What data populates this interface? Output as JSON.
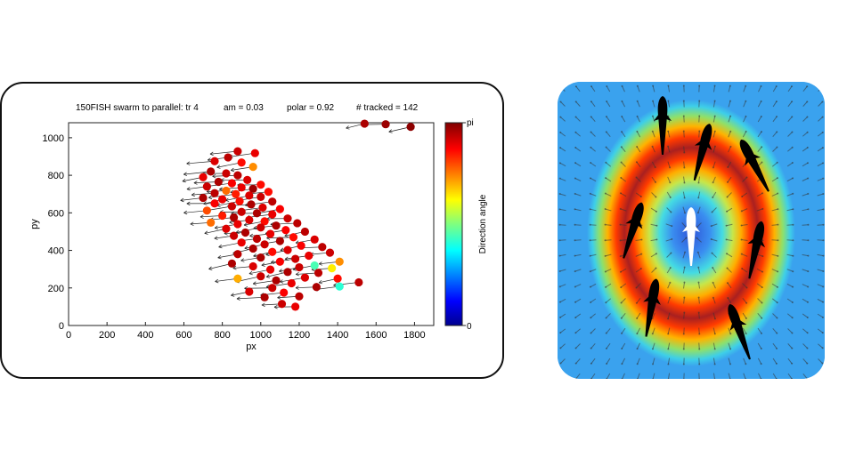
{
  "chart_data": [
    {
      "type": "scatter",
      "header": {
        "title": "150FISH swarm to parallel: tr 4",
        "am": "am = 0.03",
        "polar": "polar = 0.92",
        "tracked": "# tracked = 142"
      },
      "xlabel": "px",
      "ylabel": "py",
      "xlim": [
        0,
        1900
      ],
      "ylim": [
        0,
        1080
      ],
      "xticks": [
        "0",
        "200",
        "400",
        "600",
        "800",
        "1000",
        "1200",
        "1400",
        "1600",
        "1800"
      ],
      "yticks": [
        "0",
        "200",
        "400",
        "600",
        "800",
        "1000"
      ],
      "colorbar": {
        "label": "Direction angle",
        "min_label": "0",
        "max_label": "pi",
        "range": [
          0,
          3.1416
        ]
      },
      "points": [
        {
          "x": 1540,
          "y": 1075,
          "a": 3.0
        },
        {
          "x": 1650,
          "y": 1072,
          "a": 3.05
        },
        {
          "x": 1780,
          "y": 1058,
          "a": 3.1
        },
        {
          "x": 880,
          "y": 928,
          "a": 2.9
        },
        {
          "x": 970,
          "y": 918,
          "a": 2.8
        },
        {
          "x": 830,
          "y": 895,
          "a": 2.95
        },
        {
          "x": 760,
          "y": 875,
          "a": 2.85
        },
        {
          "x": 900,
          "y": 868,
          "a": 2.7
        },
        {
          "x": 960,
          "y": 845,
          "a": 2.3
        },
        {
          "x": 740,
          "y": 820,
          "a": 3.0
        },
        {
          "x": 820,
          "y": 810,
          "a": 2.9
        },
        {
          "x": 880,
          "y": 800,
          "a": 2.95
        },
        {
          "x": 700,
          "y": 790,
          "a": 2.8
        },
        {
          "x": 930,
          "y": 775,
          "a": 2.85
        },
        {
          "x": 780,
          "y": 765,
          "a": 3.0
        },
        {
          "x": 850,
          "y": 758,
          "a": 2.75
        },
        {
          "x": 1000,
          "y": 750,
          "a": 2.7
        },
        {
          "x": 720,
          "y": 740,
          "a": 2.9
        },
        {
          "x": 900,
          "y": 735,
          "a": 2.8
        },
        {
          "x": 960,
          "y": 728,
          "a": 3.05
        },
        {
          "x": 820,
          "y": 718,
          "a": 2.4
        },
        {
          "x": 1040,
          "y": 712,
          "a": 2.7
        },
        {
          "x": 760,
          "y": 705,
          "a": 2.95
        },
        {
          "x": 870,
          "y": 700,
          "a": 2.65
        },
        {
          "x": 940,
          "y": 692,
          "a": 2.85
        },
        {
          "x": 1000,
          "y": 685,
          "a": 2.9
        },
        {
          "x": 700,
          "y": 680,
          "a": 3.0
        },
        {
          "x": 800,
          "y": 672,
          "a": 2.8
        },
        {
          "x": 890,
          "y": 662,
          "a": 2.7
        },
        {
          "x": 1060,
          "y": 660,
          "a": 2.95
        },
        {
          "x": 760,
          "y": 650,
          "a": 2.75
        },
        {
          "x": 950,
          "y": 645,
          "a": 3.0
        },
        {
          "x": 850,
          "y": 635,
          "a": 2.9
        },
        {
          "x": 1010,
          "y": 628,
          "a": 2.85
        },
        {
          "x": 1100,
          "y": 620,
          "a": 2.75
        },
        {
          "x": 720,
          "y": 612,
          "a": 2.5
        },
        {
          "x": 900,
          "y": 605,
          "a": 2.9
        },
        {
          "x": 980,
          "y": 598,
          "a": 3.0
        },
        {
          "x": 1060,
          "y": 592,
          "a": 2.8
        },
        {
          "x": 800,
          "y": 585,
          "a": 2.65
        },
        {
          "x": 860,
          "y": 575,
          "a": 3.0
        },
        {
          "x": 1140,
          "y": 570,
          "a": 2.9
        },
        {
          "x": 940,
          "y": 562,
          "a": 2.85
        },
        {
          "x": 1020,
          "y": 555,
          "a": 2.7
        },
        {
          "x": 740,
          "y": 548,
          "a": 2.4
        },
        {
          "x": 1190,
          "y": 545,
          "a": 2.95
        },
        {
          "x": 880,
          "y": 540,
          "a": 2.8
        },
        {
          "x": 1080,
          "y": 532,
          "a": 3.0
        },
        {
          "x": 1000,
          "y": 522,
          "a": 2.9
        },
        {
          "x": 820,
          "y": 515,
          "a": 2.85
        },
        {
          "x": 1130,
          "y": 508,
          "a": 2.75
        },
        {
          "x": 1230,
          "y": 500,
          "a": 2.95
        },
        {
          "x": 920,
          "y": 495,
          "a": 3.0
        },
        {
          "x": 1050,
          "y": 488,
          "a": 2.8
        },
        {
          "x": 860,
          "y": 478,
          "a": 2.9
        },
        {
          "x": 1170,
          "y": 470,
          "a": 2.7
        },
        {
          "x": 980,
          "y": 462,
          "a": 2.95
        },
        {
          "x": 1280,
          "y": 458,
          "a": 2.85
        },
        {
          "x": 1100,
          "y": 450,
          "a": 3.0
        },
        {
          "x": 900,
          "y": 442,
          "a": 2.8
        },
        {
          "x": 1020,
          "y": 432,
          "a": 2.9
        },
        {
          "x": 1210,
          "y": 425,
          "a": 2.75
        },
        {
          "x": 1320,
          "y": 418,
          "a": 2.95
        },
        {
          "x": 960,
          "y": 410,
          "a": 3.0
        },
        {
          "x": 1140,
          "y": 402,
          "a": 2.85
        },
        {
          "x": 1060,
          "y": 392,
          "a": 2.7
        },
        {
          "x": 1360,
          "y": 388,
          "a": 2.9
        },
        {
          "x": 880,
          "y": 380,
          "a": 2.95
        },
        {
          "x": 1250,
          "y": 372,
          "a": 2.8
        },
        {
          "x": 1000,
          "y": 362,
          "a": 3.0
        },
        {
          "x": 1180,
          "y": 355,
          "a": 2.9
        },
        {
          "x": 1410,
          "y": 340,
          "a": 2.3
        },
        {
          "x": 1100,
          "y": 340,
          "a": 2.75
        },
        {
          "x": 850,
          "y": 330,
          "a": 3.0
        },
        {
          "x": 1280,
          "y": 320,
          "a": 1.4
        },
        {
          "x": 960,
          "y": 315,
          "a": 2.85
        },
        {
          "x": 1200,
          "y": 310,
          "a": 2.9
        },
        {
          "x": 1370,
          "y": 305,
          "a": 2.0
        },
        {
          "x": 1050,
          "y": 298,
          "a": 2.8
        },
        {
          "x": 1140,
          "y": 285,
          "a": 3.0
        },
        {
          "x": 1300,
          "y": 280,
          "a": 2.95
        },
        {
          "x": 880,
          "y": 250,
          "a": 2.2
        },
        {
          "x": 1000,
          "y": 262,
          "a": 2.9
        },
        {
          "x": 1230,
          "y": 255,
          "a": 2.85
        },
        {
          "x": 1400,
          "y": 250,
          "a": 2.7
        },
        {
          "x": 1080,
          "y": 240,
          "a": 3.0
        },
        {
          "x": 1510,
          "y": 230,
          "a": 2.95
        },
        {
          "x": 1160,
          "y": 225,
          "a": 2.8
        },
        {
          "x": 1410,
          "y": 208,
          "a": 1.3
        },
        {
          "x": 1060,
          "y": 200,
          "a": 2.9
        },
        {
          "x": 1290,
          "y": 205,
          "a": 3.0
        },
        {
          "x": 940,
          "y": 180,
          "a": 2.85
        },
        {
          "x": 1120,
          "y": 175,
          "a": 2.75
        },
        {
          "x": 1200,
          "y": 155,
          "a": 2.95
        },
        {
          "x": 1020,
          "y": 150,
          "a": 3.0
        },
        {
          "x": 1110,
          "y": 115,
          "a": 2.9
        },
        {
          "x": 1180,
          "y": 100,
          "a": 2.8
        }
      ]
    },
    {
      "type": "heatmap",
      "field": "radial colour map with vector field and fish silhouettes",
      "colors": {
        "low": "#2f55d8",
        "mid": "#3ad7e4",
        "high": "#ff2a00",
        "peak": "#8b1a1a"
      }
    }
  ]
}
